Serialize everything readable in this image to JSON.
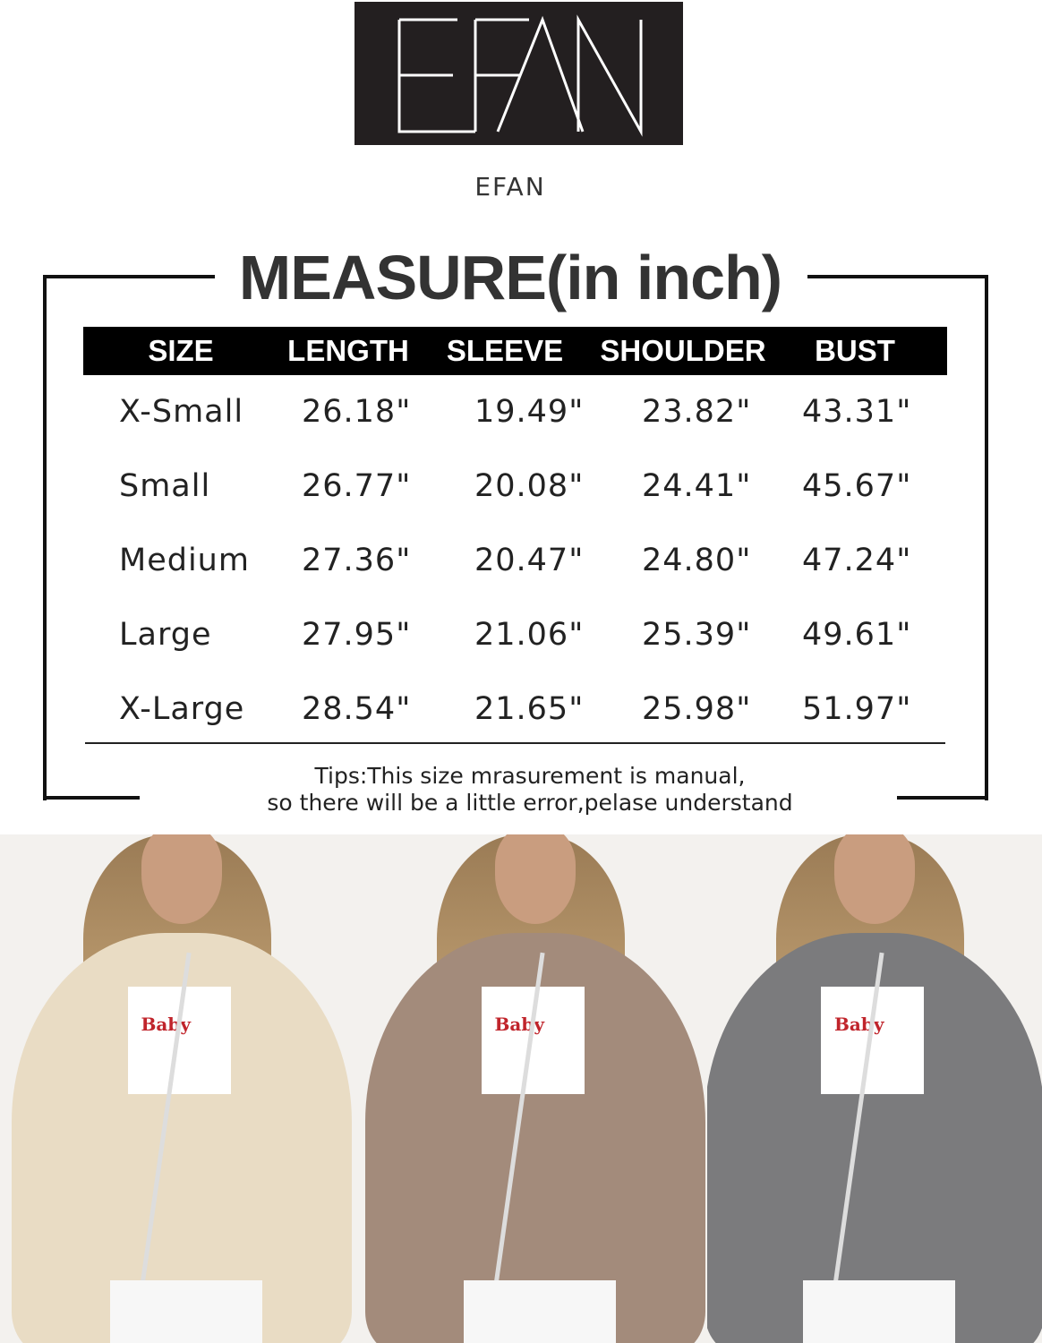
{
  "brand": {
    "logo_text": "EFAN",
    "name": "EFAN"
  },
  "chart": {
    "title": "MEASURE(in inch)",
    "headers": [
      "SIZE",
      "LENGTH",
      "SLEEVE",
      "SHOULDER",
      "BUST"
    ],
    "rows": [
      [
        "X-Small",
        "26.18\"",
        "19.49\"",
        "23.82\"",
        "43.31\""
      ],
      [
        "Small",
        "26.77\"",
        "20.08\"",
        "24.41\"",
        "45.67\""
      ],
      [
        "Medium",
        "27.36\"",
        "20.47\"",
        "24.80\"",
        "47.24\""
      ],
      [
        "Large",
        "27.95\"",
        "21.06\"",
        "25.39\"",
        "49.61\""
      ],
      [
        "X-Large",
        "28.54\"",
        "21.65\"",
        "25.98\"",
        "51.97\""
      ]
    ],
    "tips": [
      "Tips:This size mrasurement is manual,",
      "so there will be a little error,pelase understand"
    ]
  },
  "photos": [
    {
      "color_hex": "#e9dcc4",
      "print": "Baby"
    },
    {
      "color_hex": "#a38b7b",
      "print": "Baby"
    },
    {
      "color_hex": "#7b7b7d",
      "print": "Baby"
    }
  ]
}
